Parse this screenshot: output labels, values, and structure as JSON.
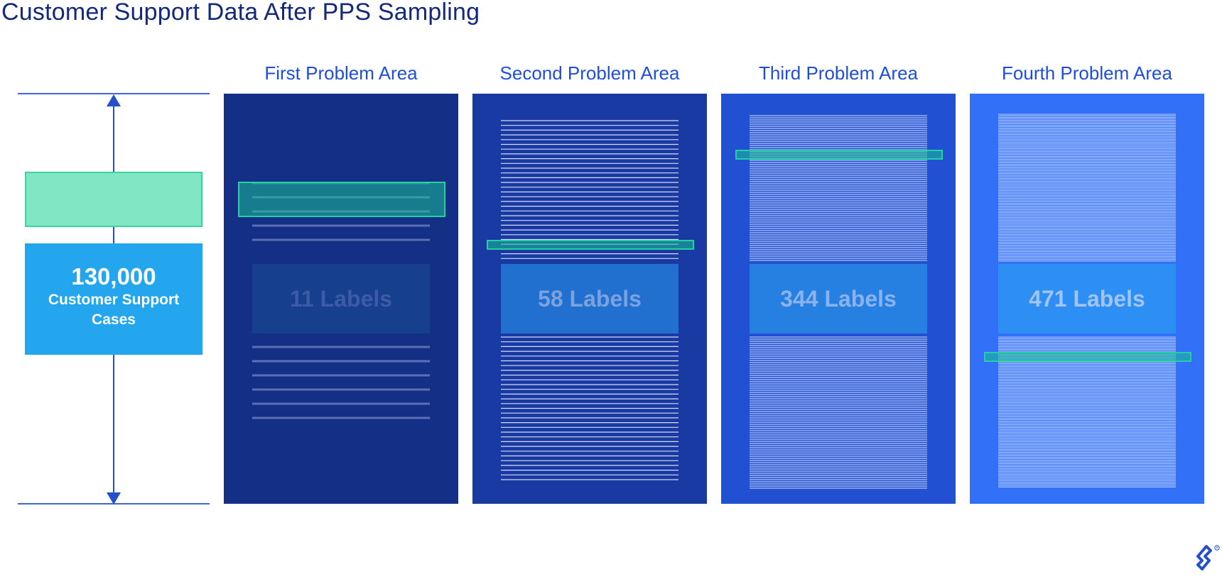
{
  "title": "Customer Support Data After PPS Sampling",
  "population": {
    "count": "130,000",
    "label": "Customer Support Cases"
  },
  "areas": [
    {
      "heading": "First Problem Area",
      "label": "11 Labels",
      "labels": 11,
      "bg": "#142f86",
      "box": "#163f8e",
      "box_text": "#3d5aa6",
      "line": "#5d6fb6"
    },
    {
      "heading": "Second Problem Area",
      "label": "58 Labels",
      "labels": 58,
      "bg": "#1a3aa3",
      "box": "#2170d0",
      "box_text": "#7aa2df",
      "line": "#d4dcf3"
    },
    {
      "heading": "Third Problem Area",
      "label": "344 Labels",
      "labels": 344,
      "bg": "#2250d2",
      "box": "#2580e2",
      "box_text": "#8ab2ec",
      "line": "#dfe6f8"
    },
    {
      "heading": "Fourth Problem Area",
      "label": "471 Labels",
      "labels": 471,
      "bg": "#3370f8",
      "box": "#2d8ff3",
      "box_text": "#a1c4f4",
      "line": "#e3ebfc"
    }
  ],
  "colors": {
    "title": "#15297a",
    "heading": "#1f4ed8",
    "population_box": "#24a6ee",
    "sample_box": "#80e6c4",
    "sample_highlight": "#1abe96",
    "arrow": "#2450c9"
  },
  "icons": {
    "logo": "toptal-logo-icon"
  }
}
